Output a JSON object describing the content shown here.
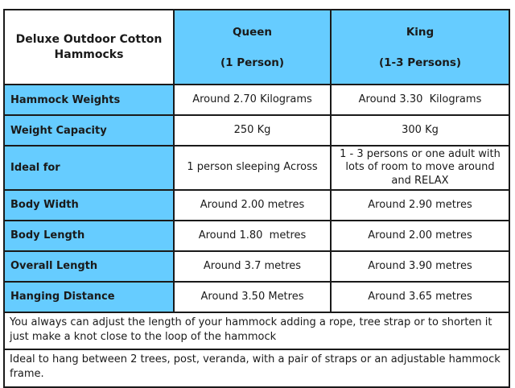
{
  "table": {
    "corner_title": "Deluxe Outdoor Cotton Hammocks",
    "columns": [
      {
        "name": "Queen",
        "subtitle": "(1 Person)"
      },
      {
        "name": "King",
        "subtitle": "(1-3 Persons)"
      }
    ],
    "rows": [
      {
        "label": "Hammock Weights",
        "queen": "Around 2.70 Kilograms",
        "king": "Around 3.30  Kilograms"
      },
      {
        "label": "Weight Capacity",
        "queen": "250 Kg",
        "king": "300 Kg"
      },
      {
        "label": "Ideal for",
        "queen": "1 person sleeping Across",
        "king": "1 - 3 persons or one adult with lots of room to move around and RELAX"
      },
      {
        "label": "Body Width",
        "queen": "Around 2.00 metres",
        "king": "Around 2.90 metres"
      },
      {
        "label": "Body Length",
        "queen": "Around 1.80  metres",
        "king": "Around 2.00 metres"
      },
      {
        "label": "Overall Length",
        "queen": "Around 3.7 metres",
        "king": "Around 3.90 metres"
      },
      {
        "label": "Hanging Distance",
        "queen": "Around 3.50 Metres",
        "king": "Around 3.65 metres"
      }
    ],
    "notes": [
      "You always can adjust the length of your hammock adding a rope, tree strap or to shorten it just make a knot close to the loop of the hammock",
      "Ideal to hang between 2 trees, post, veranda, with a pair of straps or an adjustable hammock frame."
    ],
    "colors": {
      "header_blue": "#66CCFF",
      "border": "#1a1a1a",
      "cell_background": "#ffffff",
      "text": "#1a1a1a"
    }
  }
}
